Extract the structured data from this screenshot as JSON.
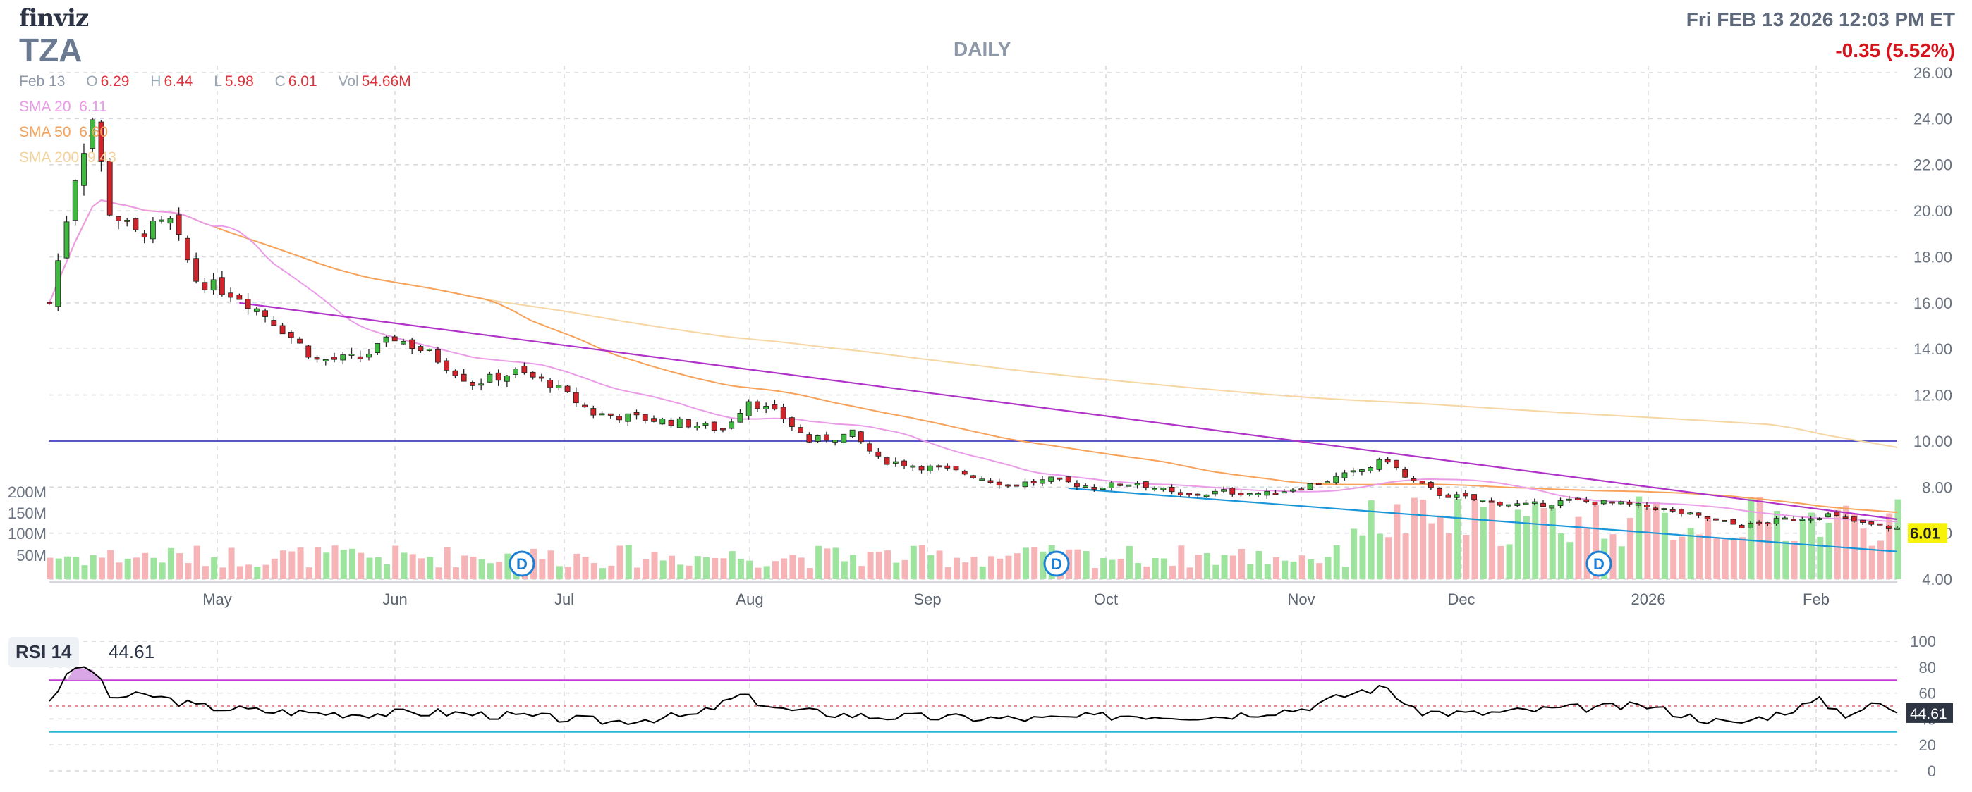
{
  "header": {
    "logo": "finviz",
    "ticker": "TZA",
    "timeframe": "DAILY",
    "datetime": "Fri FEB 13 2026 12:03 PM ET",
    "change": "-0.35 (5.52%)"
  },
  "ohlc": {
    "date": "Feb 13",
    "o_label": "O",
    "o": "6.29",
    "h_label": "H",
    "h": "6.44",
    "l_label": "L",
    "l": "5.98",
    "c_label": "C",
    "c": "6.01",
    "vol_label": "Vol",
    "vol": "54.66M"
  },
  "sma_labels": {
    "sma20": "SMA 20",
    "sma20_val": "6.11",
    "sma50": "SMA 50",
    "sma50_val": "6.60",
    "sma200": "SMA 200",
    "sma200_val": "9.43"
  },
  "rsi": {
    "label": "RSI 14",
    "value": "44.61"
  },
  "last_price_label": "6.01",
  "dividend_marker": "D",
  "colors": {
    "up": "#3fb83f",
    "down": "#d2232a",
    "sma20": "#ea9ce8",
    "sma50": "#f7a25a",
    "sma200": "#f6d6a3",
    "trendline_upper": "#b032c8",
    "trendline_lower": "#1a96d8",
    "hline": "#5855c8",
    "rsi_line": "#000000",
    "rsi_upper": "#c33cd6",
    "rsi_lower": "#28b8d6",
    "vol_up": "#9ee39e",
    "vol_down": "#f7b4b6"
  },
  "chart_data": {
    "type": "candlestick",
    "title": "TZA",
    "price_axis": {
      "ticks": [
        "4.00",
        "6.00",
        "8.00",
        "10.00",
        "12.00",
        "14.00",
        "16.00",
        "18.00",
        "20.00",
        "22.00",
        "24.00",
        "26.00"
      ],
      "ylim": [
        4,
        26
      ]
    },
    "volume_axis": {
      "ticks": [
        "50M",
        "100M",
        "150M",
        "200M"
      ]
    },
    "rsi_axis": {
      "ticks": [
        "0",
        "20",
        "40",
        "60",
        "80",
        "100"
      ],
      "ylim": [
        0,
        100
      ],
      "upper_band": 70,
      "lower_band": 30
    },
    "x_ticks": [
      "May",
      "Jun",
      "Jul",
      "Aug",
      "Sep",
      "Oct",
      "Nov",
      "Dec",
      "2026",
      "Feb"
    ],
    "horizontal_line": 10.0,
    "dividends": [
      "Jun",
      "Sep",
      "Dec"
    ],
    "price_path": [
      {
        "d": 0,
        "v": 16.0
      },
      {
        "d": 3,
        "v": 21.5
      },
      {
        "d": 5,
        "v": 24.0
      },
      {
        "d": 7,
        "v": 20.0
      },
      {
        "d": 10,
        "v": 19.0
      },
      {
        "d": 14,
        "v": 19.5
      },
      {
        "d": 17,
        "v": 17.0
      },
      {
        "d": 22,
        "v": 16.3
      },
      {
        "d": 26,
        "v": 15.2
      },
      {
        "d": 31,
        "v": 13.5
      },
      {
        "d": 36,
        "v": 13.6
      },
      {
        "d": 40,
        "v": 14.5
      },
      {
        "d": 44,
        "v": 13.8
      },
      {
        "d": 49,
        "v": 12.5
      },
      {
        "d": 54,
        "v": 13.0
      },
      {
        "d": 58,
        "v": 12.5
      },
      {
        "d": 63,
        "v": 11.2
      },
      {
        "d": 68,
        "v": 11.0
      },
      {
        "d": 73,
        "v": 10.8
      },
      {
        "d": 78,
        "v": 10.5
      },
      {
        "d": 81,
        "v": 11.8
      },
      {
        "d": 85,
        "v": 11.0
      },
      {
        "d": 88,
        "v": 10.0
      },
      {
        "d": 93,
        "v": 10.3
      },
      {
        "d": 96,
        "v": 9.2
      },
      {
        "d": 101,
        "v": 8.9
      },
      {
        "d": 106,
        "v": 8.6
      },
      {
        "d": 111,
        "v": 8.1
      },
      {
        "d": 116,
        "v": 8.3
      },
      {
        "d": 121,
        "v": 8.0
      },
      {
        "d": 126,
        "v": 8.2
      },
      {
        "d": 131,
        "v": 7.6
      },
      {
        "d": 136,
        "v": 7.8
      },
      {
        "d": 141,
        "v": 7.7
      },
      {
        "d": 146,
        "v": 8.1
      },
      {
        "d": 151,
        "v": 8.6
      },
      {
        "d": 155,
        "v": 9.2
      },
      {
        "d": 157,
        "v": 8.4
      },
      {
        "d": 161,
        "v": 7.7
      },
      {
        "d": 166,
        "v": 7.4
      },
      {
        "d": 171,
        "v": 7.2
      },
      {
        "d": 176,
        "v": 7.4
      },
      {
        "d": 181,
        "v": 7.3
      },
      {
        "d": 186,
        "v": 7.1
      },
      {
        "d": 191,
        "v": 6.7
      },
      {
        "d": 196,
        "v": 6.3
      },
      {
        "d": 201,
        "v": 6.6
      },
      {
        "d": 206,
        "v": 6.8
      },
      {
        "d": 210,
        "v": 6.4
      },
      {
        "d": 214,
        "v": 6.2
      }
    ],
    "rsi_path": [
      {
        "d": 0,
        "v": 55
      },
      {
        "d": 3,
        "v": 80
      },
      {
        "d": 5,
        "v": 78
      },
      {
        "d": 7,
        "v": 57
      },
      {
        "d": 12,
        "v": 58
      },
      {
        "d": 17,
        "v": 50
      },
      {
        "d": 25,
        "v": 46
      },
      {
        "d": 35,
        "v": 44
      },
      {
        "d": 45,
        "v": 45
      },
      {
        "d": 55,
        "v": 42
      },
      {
        "d": 65,
        "v": 38
      },
      {
        "d": 75,
        "v": 43
      },
      {
        "d": 80,
        "v": 58
      },
      {
        "d": 85,
        "v": 47
      },
      {
        "d": 95,
        "v": 42
      },
      {
        "d": 105,
        "v": 41
      },
      {
        "d": 115,
        "v": 40
      },
      {
        "d": 125,
        "v": 43
      },
      {
        "d": 135,
        "v": 42
      },
      {
        "d": 145,
        "v": 48
      },
      {
        "d": 152,
        "v": 62
      },
      {
        "d": 155,
        "v": 64
      },
      {
        "d": 158,
        "v": 46
      },
      {
        "d": 165,
        "v": 44
      },
      {
        "d": 175,
        "v": 48
      },
      {
        "d": 185,
        "v": 50
      },
      {
        "d": 190,
        "v": 42
      },
      {
        "d": 195,
        "v": 36
      },
      {
        "d": 200,
        "v": 44
      },
      {
        "d": 205,
        "v": 54
      },
      {
        "d": 208,
        "v": 44
      },
      {
        "d": 212,
        "v": 52
      },
      {
        "d": 214,
        "v": 44.61
      }
    ]
  }
}
